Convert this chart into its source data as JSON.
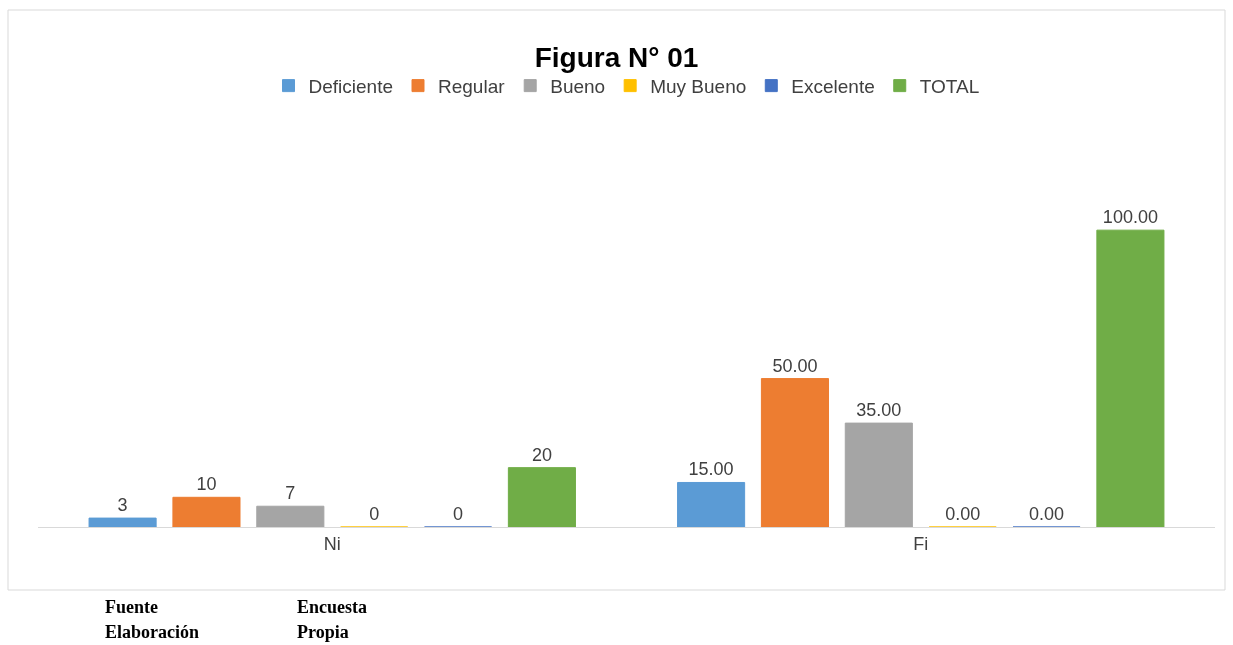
{
  "chart_data": {
    "type": "bar",
    "title": "Figura N° 01",
    "categories": [
      "Ni",
      "Fi"
    ],
    "legend": "top",
    "series": [
      {
        "name": "Deficiente",
        "color": "#5b9bd5",
        "values": [
          3,
          15
        ],
        "value_labels": [
          "3",
          "15.00"
        ]
      },
      {
        "name": "Regular",
        "color": "#ed7d31",
        "values": [
          10,
          50
        ],
        "value_labels": [
          "10",
          "50.00"
        ]
      },
      {
        "name": "Bueno",
        "color": "#a5a5a5",
        "values": [
          7,
          35
        ],
        "value_labels": [
          "7",
          "35.00"
        ]
      },
      {
        "name": "Muy Bueno",
        "color": "#ffc000",
        "values": [
          0,
          0
        ],
        "value_labels": [
          "0",
          "0.00"
        ]
      },
      {
        "name": "Excelente",
        "color": "#4472c4",
        "values": [
          0,
          0
        ],
        "value_labels": [
          "0",
          "0.00"
        ]
      },
      {
        "name": "TOTAL",
        "color": "#70ad47",
        "values": [
          20,
          100
        ],
        "value_labels": [
          "20",
          "100.00"
        ]
      }
    ],
    "annotations": [
      "Fuente",
      "Encuesta",
      "Elaboración",
      "Propia"
    ]
  }
}
